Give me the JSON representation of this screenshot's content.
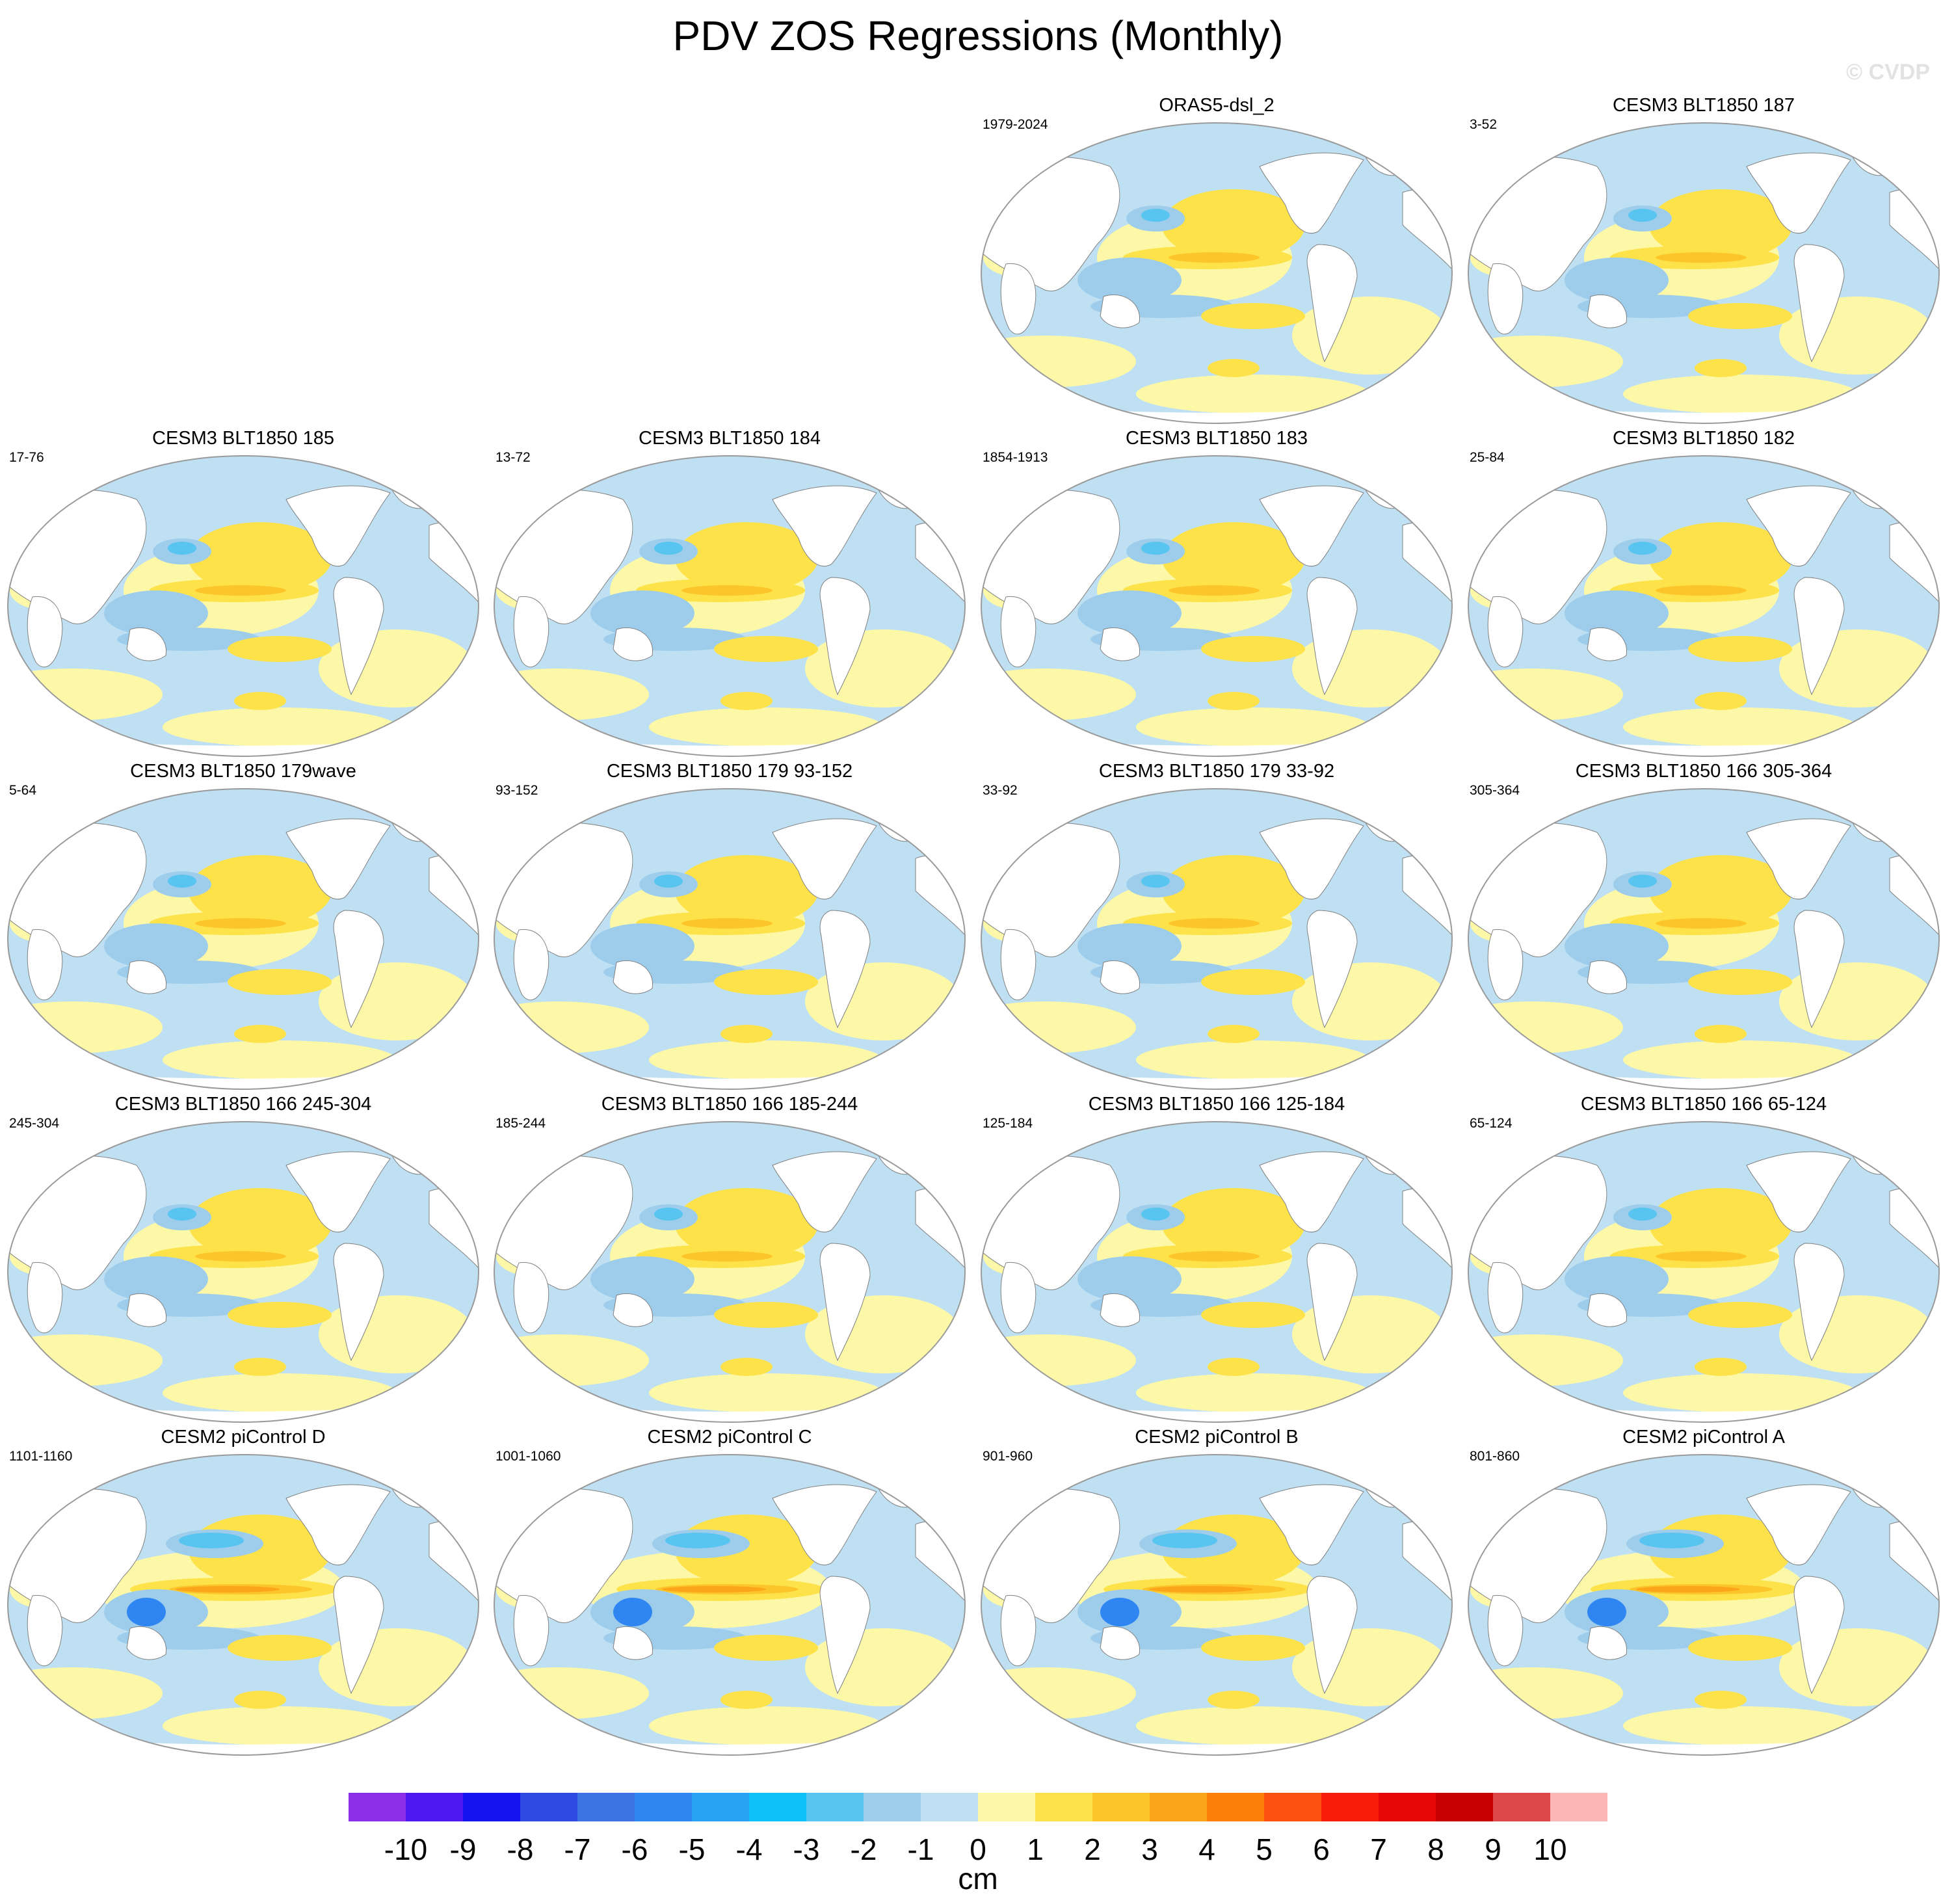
{
  "title": "PDV ZOS Regressions (Monthly)",
  "watermark": "© CVDP",
  "panels": [
    {
      "title": "ORAS5-dsl_2",
      "range": "1979-2024"
    },
    {
      "title": "CESM3 BLT1850 187",
      "range": "3-52"
    },
    {
      "title": "CESM3 BLT1850 185",
      "range": "17-76"
    },
    {
      "title": "CESM3 BLT1850 184",
      "range": "13-72"
    },
    {
      "title": "CESM3 BLT1850 183",
      "range": "1854-1913"
    },
    {
      "title": "CESM3 BLT1850 182",
      "range": "25-84"
    },
    {
      "title": "CESM3 BLT1850 179wave",
      "range": "5-64"
    },
    {
      "title": "CESM3 BLT1850 179 93-152",
      "range": "93-152"
    },
    {
      "title": "CESM3 BLT1850 179 33-92",
      "range": "33-92"
    },
    {
      "title": "CESM3 BLT1850 166 305-364",
      "range": "305-364"
    },
    {
      "title": "CESM3 BLT1850 166 245-304",
      "range": "245-304"
    },
    {
      "title": "CESM3 BLT1850 166 185-244",
      "range": "185-244"
    },
    {
      "title": "CESM3 BLT1850 166 125-184",
      "range": "125-184"
    },
    {
      "title": "CESM3 BLT1850 166 65-124",
      "range": "65-124"
    },
    {
      "title": "CESM2 piControl D",
      "range": "1101-1160"
    },
    {
      "title": "CESM2 piControl C",
      "range": "1001-1060"
    },
    {
      "title": "CESM2 piControl B",
      "range": "901-960"
    },
    {
      "title": "CESM2 piControl A",
      "range": "801-860"
    }
  ],
  "colorbar": {
    "units": "cm",
    "labels": [
      "-10",
      "-9",
      "-8",
      "-7",
      "-6",
      "-5",
      "-4",
      "-3",
      "-2",
      "-1",
      "0",
      "1",
      "2",
      "3",
      "4",
      "5",
      "6",
      "7",
      "8",
      "9",
      "10"
    ],
    "colors": [
      "#8a2ee8",
      "#4e18f0",
      "#1414f0",
      "#2e4ae0",
      "#3d72e2",
      "#2f86f2",
      "#28a2f5",
      "#0ec2f8",
      "#58c4f0",
      "#9ecdec",
      "#bfe0f2",
      "#fdf8a8",
      "#fde24a",
      "#fcc52a",
      "#fca41a",
      "#fc8008",
      "#fb5210",
      "#f91d08",
      "#e70707",
      "#c70000",
      "#dc4848",
      "#fcb6b6"
    ]
  },
  "map_colors": {
    "land": "#ffffff",
    "coast": "#808080",
    "neutral_pos": "#fdf8a8",
    "neutral_neg": "#bfe0f2",
    "pos": "#fde24a",
    "pos_strong": "#fcc52a",
    "pos_max": "#fca41a",
    "neg": "#9ecdec",
    "neg_strong": "#58c4f0",
    "neg_max": "#2f86f2"
  }
}
